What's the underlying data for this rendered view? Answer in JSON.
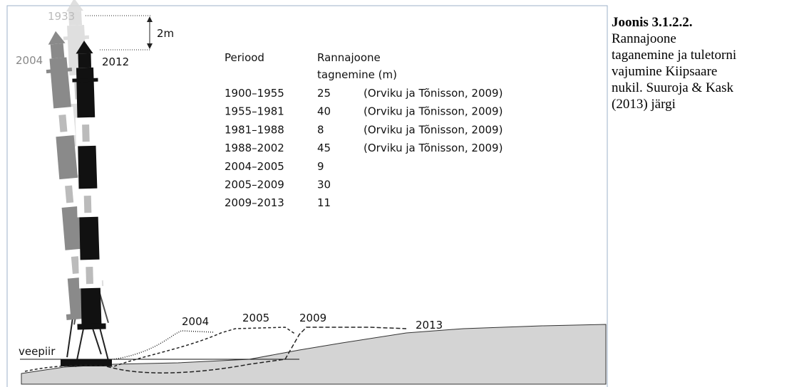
{
  "figure": {
    "tower_years": [
      "1933",
      "2004",
      "2012"
    ],
    "height_label": "2m",
    "shore_years": [
      "2004",
      "2005",
      "2009",
      "2013"
    ],
    "waterline": "veepiir"
  },
  "table": {
    "header": {
      "period": "Periood",
      "change": [
        "Rannajoone",
        "tagnemine (m)"
      ]
    },
    "rows": [
      [
        "1900–1955",
        25,
        "(Orviku ja Tõnisson, 2009)"
      ],
      [
        "1955–1981",
        40,
        "(Orviku ja Tõnisson, 2009)"
      ],
      [
        "1981–1988",
        8,
        "(Orviku ja Tõnisson, 2009)"
      ],
      [
        "1988–2002",
        45,
        "(Orviku ja Tõnisson, 2009)"
      ],
      [
        "2004–2005",
        9
      ],
      [
        "2005–2009",
        30
      ],
      [
        "2009–2013",
        11
      ]
    ]
  },
  "caption": {
    "title": "Joonis 3.1.2.2.",
    "lines": [
      "Rannajoone",
      "taganemine ja tuletorni",
      "vajumine Kiipsaare",
      "nukil. Suuroja & Kask",
      "(2013) järgi"
    ]
  }
}
